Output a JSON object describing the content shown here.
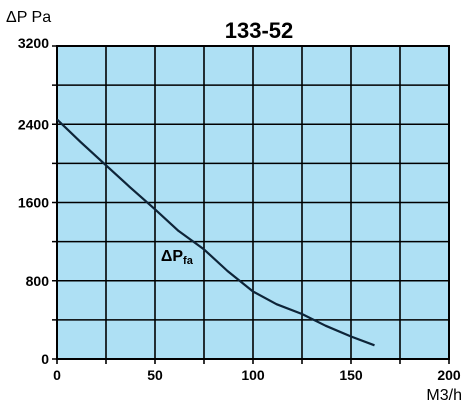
{
  "chart_data": {
    "type": "line",
    "title": "133-52",
    "ylabel": "ΔP  Pa",
    "xlabel": "M3/h",
    "xlim": [
      0,
      200
    ],
    "ylim": [
      0,
      3200
    ],
    "xticks": [
      0,
      50,
      100,
      150,
      200
    ],
    "yticks": [
      0,
      800,
      1600,
      2400,
      3200
    ],
    "x_grid_step": 25,
    "y_grid_step": 400,
    "grid": true,
    "plot_background": "#aee0f4",
    "line_color": "#0e2438",
    "series": [
      {
        "name": "ΔPfa",
        "x": [
          0,
          12,
          25,
          37,
          50,
          62,
          75,
          87,
          100,
          112,
          125,
          137,
          150,
          162
        ],
        "y": [
          2450,
          2220,
          1980,
          1760,
          1530,
          1310,
          1120,
          900,
          690,
          560,
          460,
          340,
          230,
          140
        ]
      }
    ],
    "annotations": [
      {
        "text": "ΔPfa",
        "x": 53,
        "y": 1000
      }
    ]
  }
}
